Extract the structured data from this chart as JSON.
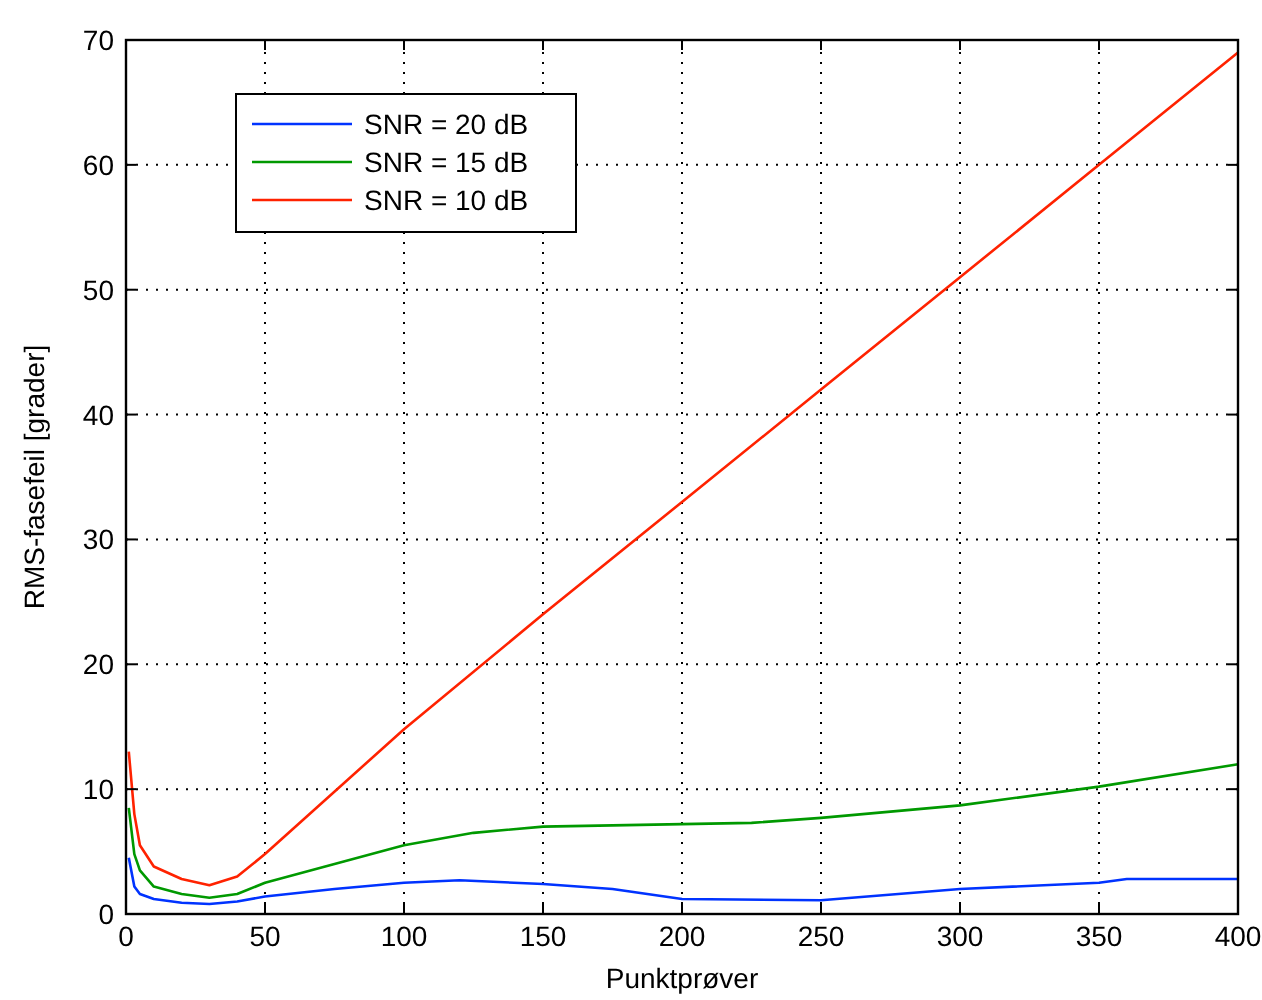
{
  "chart_data": {
    "type": "line",
    "xlabel": "Punktprøver",
    "ylabel": "RMS-fasefeil [grader]",
    "xlim": [
      0,
      400
    ],
    "ylim": [
      0,
      70
    ],
    "xticks": [
      0,
      50,
      100,
      150,
      200,
      250,
      300,
      350,
      400
    ],
    "yticks": [
      0,
      10,
      20,
      30,
      40,
      50,
      60,
      70
    ],
    "grid": true,
    "legend": "top left",
    "line_style": "solid",
    "marker": "none",
    "series": [
      {
        "name": "SNR = 20 dB",
        "color": "#0033ff",
        "x": [
          1,
          3,
          5,
          10,
          20,
          30,
          40,
          50,
          75,
          100,
          120,
          150,
          175,
          200,
          250,
          300,
          350,
          360,
          400
        ],
        "values": [
          4.5,
          2.2,
          1.6,
          1.2,
          0.9,
          0.8,
          1,
          1.4,
          2,
          2.5,
          2.7,
          2.4,
          2,
          1.2,
          1.1,
          2,
          2.5,
          2.8,
          2.8
        ]
      },
      {
        "name": "SNR = 15 dB",
        "color": "#009900",
        "x": [
          1,
          3,
          5,
          10,
          20,
          30,
          40,
          50,
          75,
          100,
          125,
          150,
          200,
          225,
          250,
          300,
          350,
          400
        ],
        "values": [
          8.5,
          4.8,
          3.5,
          2.2,
          1.6,
          1.3,
          1.6,
          2.5,
          4,
          5.5,
          6.5,
          7,
          7.2,
          7.3,
          7.7,
          8.7,
          10.2,
          12
        ]
      },
      {
        "name": "SNR = 10 dB",
        "color": "#ff2200",
        "x": [
          1,
          3,
          5,
          10,
          20,
          30,
          40,
          50,
          100,
          150,
          200,
          250,
          300,
          350,
          400
        ],
        "values": [
          13,
          8,
          5.5,
          3.8,
          2.8,
          2.3,
          3,
          4.8,
          14.8,
          24,
          33,
          42,
          51,
          60,
          69
        ]
      }
    ]
  }
}
